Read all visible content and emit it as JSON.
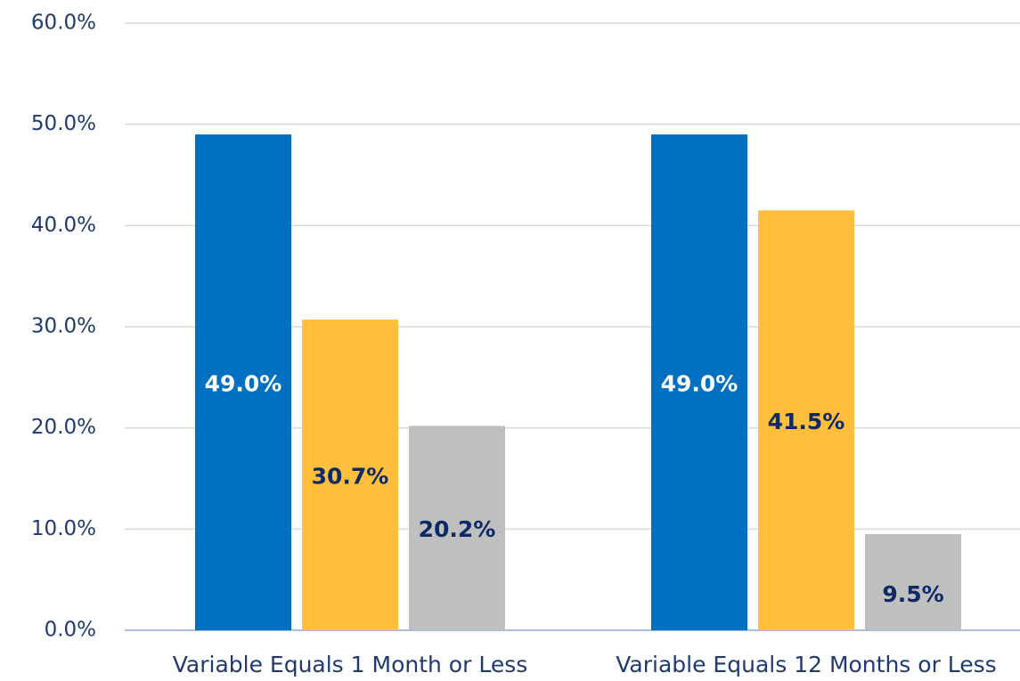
{
  "chart_data": {
    "type": "bar",
    "categories": [
      "Variable Equals 1 Month or Less",
      "Variable Equals 12 Months or Less"
    ],
    "series": [
      {
        "color": "#0070c0",
        "label_color": "#ffffff",
        "values": [
          49.0,
          49.0
        ],
        "value_labels": [
          "49.0%",
          "49.0%"
        ]
      },
      {
        "color": "#ffbe3c",
        "label_color": "#0d2a66",
        "values": [
          30.7,
          41.5
        ],
        "value_labels": [
          "30.7%",
          "41.5%"
        ]
      },
      {
        "color": "#bfbfbf",
        "label_color": "#0d2a66",
        "values": [
          20.2,
          9.5
        ],
        "value_labels": [
          "20.2%",
          "9.5%"
        ]
      }
    ],
    "ylim": [
      0,
      60
    ],
    "yticks": [
      {
        "value": 0,
        "label": "0.0%"
      },
      {
        "value": 10,
        "label": "10.0%"
      },
      {
        "value": 20,
        "label": "20.0%"
      },
      {
        "value": 30,
        "label": "30.0%"
      },
      {
        "value": 40,
        "label": "40.0%"
      },
      {
        "value": 50,
        "label": "50.0%"
      },
      {
        "value": 60,
        "label": "60.0%"
      }
    ],
    "grid": true
  }
}
